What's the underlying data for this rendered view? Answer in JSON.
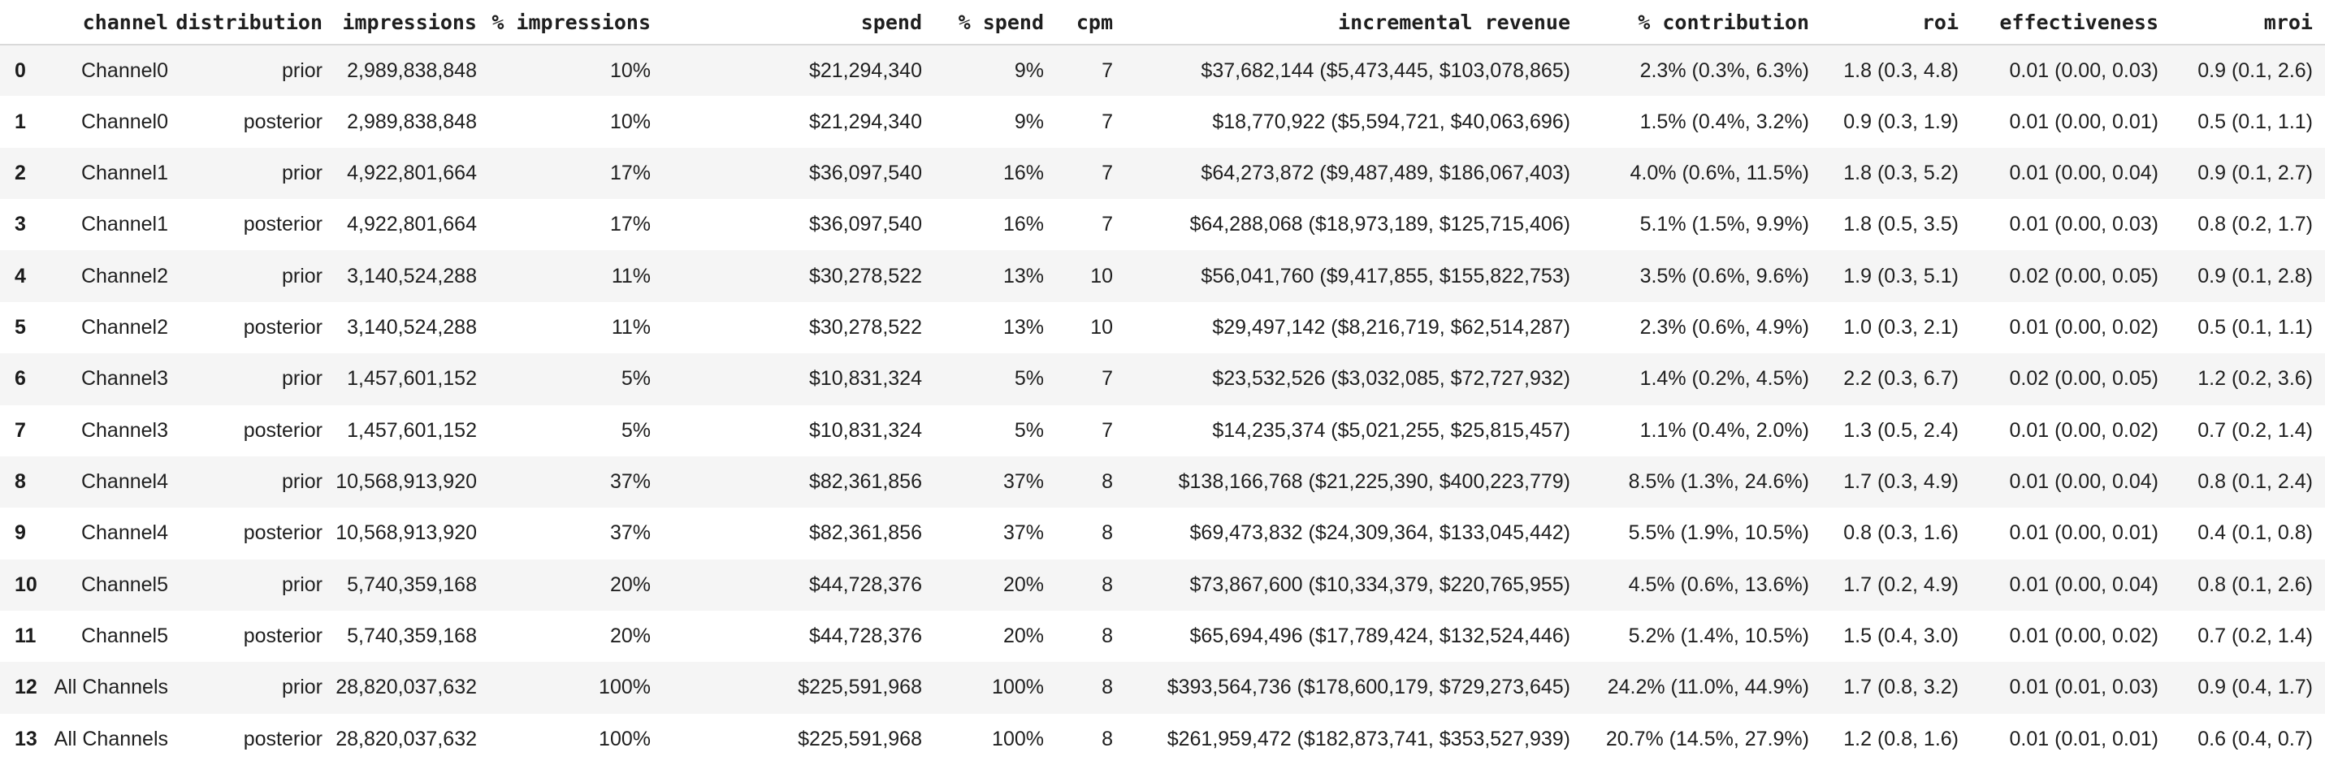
{
  "chart_data": {
    "type": "table",
    "title": "",
    "columns": [
      "",
      "channel",
      "distribution",
      "impressions",
      "% impressions",
      "spend",
      "% spend",
      "cpm",
      "incremental revenue",
      "% contribution",
      "roi",
      "effectiveness",
      "mroi"
    ],
    "rows": [
      [
        "0",
        "Channel0",
        "prior",
        "2,989,838,848",
        "10%",
        "$21,294,340",
        "9%",
        "7",
        "$37,682,144 ($5,473,445, $103,078,865)",
        "2.3% (0.3%, 6.3%)",
        "1.8 (0.3, 4.8)",
        "0.01 (0.00, 0.03)",
        "0.9 (0.1, 2.6)"
      ],
      [
        "1",
        "Channel0",
        "posterior",
        "2,989,838,848",
        "10%",
        "$21,294,340",
        "9%",
        "7",
        "$18,770,922 ($5,594,721, $40,063,696)",
        "1.5% (0.4%, 3.2%)",
        "0.9 (0.3, 1.9)",
        "0.01 (0.00, 0.01)",
        "0.5 (0.1, 1.1)"
      ],
      [
        "2",
        "Channel1",
        "prior",
        "4,922,801,664",
        "17%",
        "$36,097,540",
        "16%",
        "7",
        "$64,273,872 ($9,487,489, $186,067,403)",
        "4.0% (0.6%, 11.5%)",
        "1.8 (0.3, 5.2)",
        "0.01 (0.00, 0.04)",
        "0.9 (0.1, 2.7)"
      ],
      [
        "3",
        "Channel1",
        "posterior",
        "4,922,801,664",
        "17%",
        "$36,097,540",
        "16%",
        "7",
        "$64,288,068 ($18,973,189, $125,715,406)",
        "5.1% (1.5%, 9.9%)",
        "1.8 (0.5, 3.5)",
        "0.01 (0.00, 0.03)",
        "0.8 (0.2, 1.7)"
      ],
      [
        "4",
        "Channel2",
        "prior",
        "3,140,524,288",
        "11%",
        "$30,278,522",
        "13%",
        "10",
        "$56,041,760 ($9,417,855, $155,822,753)",
        "3.5% (0.6%, 9.6%)",
        "1.9 (0.3, 5.1)",
        "0.02 (0.00, 0.05)",
        "0.9 (0.1, 2.8)"
      ],
      [
        "5",
        "Channel2",
        "posterior",
        "3,140,524,288",
        "11%",
        "$30,278,522",
        "13%",
        "10",
        "$29,497,142 ($8,216,719, $62,514,287)",
        "2.3% (0.6%, 4.9%)",
        "1.0 (0.3, 2.1)",
        "0.01 (0.00, 0.02)",
        "0.5 (0.1, 1.1)"
      ],
      [
        "6",
        "Channel3",
        "prior",
        "1,457,601,152",
        "5%",
        "$10,831,324",
        "5%",
        "7",
        "$23,532,526 ($3,032,085, $72,727,932)",
        "1.4% (0.2%, 4.5%)",
        "2.2 (0.3, 6.7)",
        "0.02 (0.00, 0.05)",
        "1.2 (0.2, 3.6)"
      ],
      [
        "7",
        "Channel3",
        "posterior",
        "1,457,601,152",
        "5%",
        "$10,831,324",
        "5%",
        "7",
        "$14,235,374 ($5,021,255, $25,815,457)",
        "1.1% (0.4%, 2.0%)",
        "1.3 (0.5, 2.4)",
        "0.01 (0.00, 0.02)",
        "0.7 (0.2, 1.4)"
      ],
      [
        "8",
        "Channel4",
        "prior",
        "10,568,913,920",
        "37%",
        "$82,361,856",
        "37%",
        "8",
        "$138,166,768 ($21,225,390, $400,223,779)",
        "8.5% (1.3%, 24.6%)",
        "1.7 (0.3, 4.9)",
        "0.01 (0.00, 0.04)",
        "0.8 (0.1, 2.4)"
      ],
      [
        "9",
        "Channel4",
        "posterior",
        "10,568,913,920",
        "37%",
        "$82,361,856",
        "37%",
        "8",
        "$69,473,832 ($24,309,364, $133,045,442)",
        "5.5% (1.9%, 10.5%)",
        "0.8 (0.3, 1.6)",
        "0.01 (0.00, 0.01)",
        "0.4 (0.1, 0.8)"
      ],
      [
        "10",
        "Channel5",
        "prior",
        "5,740,359,168",
        "20%",
        "$44,728,376",
        "20%",
        "8",
        "$73,867,600 ($10,334,379, $220,765,955)",
        "4.5% (0.6%, 13.6%)",
        "1.7 (0.2, 4.9)",
        "0.01 (0.00, 0.04)",
        "0.8 (0.1, 2.6)"
      ],
      [
        "11",
        "Channel5",
        "posterior",
        "5,740,359,168",
        "20%",
        "$44,728,376",
        "20%",
        "8",
        "$65,694,496 ($17,789,424, $132,524,446)",
        "5.2% (1.4%, 10.5%)",
        "1.5 (0.4, 3.0)",
        "0.01 (0.00, 0.02)",
        "0.7 (0.2, 1.4)"
      ],
      [
        "12",
        "All Channels",
        "prior",
        "28,820,037,632",
        "100%",
        "$225,591,968",
        "100%",
        "8",
        "$393,564,736 ($178,600,179, $729,273,645)",
        "24.2% (11.0%, 44.9%)",
        "1.7 (0.8, 3.2)",
        "0.01 (0.01, 0.03)",
        "0.9 (0.4, 1.7)"
      ],
      [
        "13",
        "All Channels",
        "posterior",
        "28,820,037,632",
        "100%",
        "$225,591,968",
        "100%",
        "8",
        "$261,959,472 ($182,873,741, $353,527,939)",
        "20.7% (14.5%, 27.9%)",
        "1.2 (0.8, 1.6)",
        "0.01 (0.01, 0.01)",
        "0.6 (0.4, 0.7)"
      ]
    ],
    "colors": {
      "background": "#ffffff",
      "stripe_row": "#f5f5f5",
      "text": "#1f1f1f",
      "header_divider": "#d9d9d9"
    },
    "layout": {
      "striped_rows": "even-indices-shaded",
      "value_alignment": "right",
      "index_alignment": "left",
      "grid": "off",
      "legend": "none"
    }
  }
}
